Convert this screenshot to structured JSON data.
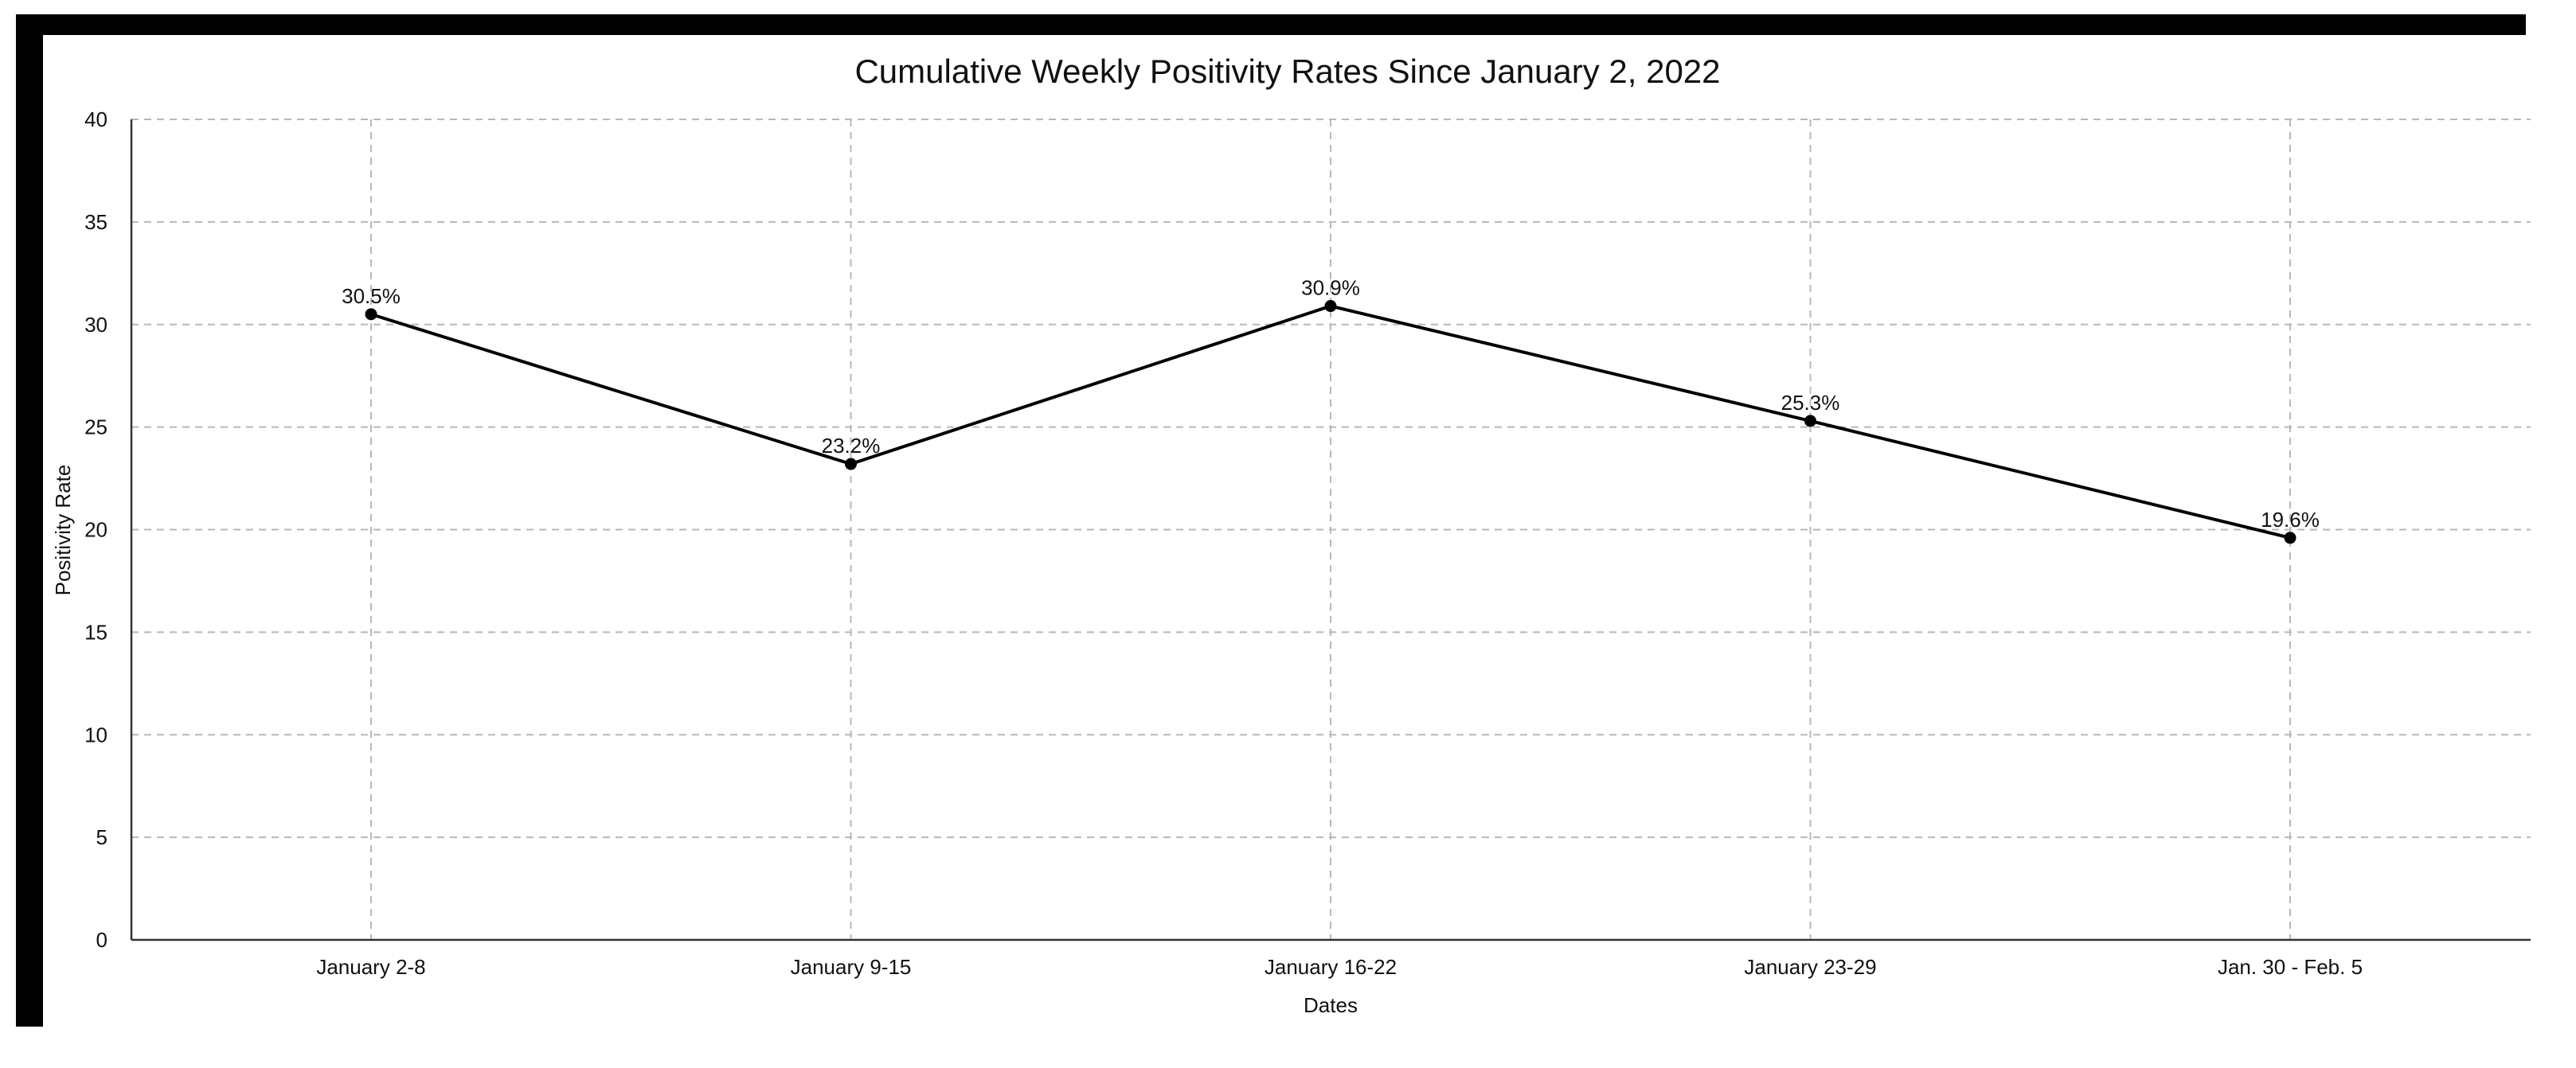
{
  "chart_data": {
    "type": "line",
    "title": "Cumulative Weekly Positivity Rates Since January 2, 2022",
    "xlabel": "Dates",
    "ylabel": "Positivity Rate",
    "categories": [
      "January 2-8",
      "January 9-15",
      "January 16-22",
      "January 23-29",
      "Jan. 30 - Feb. 5"
    ],
    "series": [
      {
        "values": [
          30.5,
          23.2,
          30.9,
          25.3,
          19.6
        ],
        "data_labels": [
          "30.5%",
          "23.2%",
          "30.9%",
          "25.3%",
          "19.6%"
        ],
        "color": "#000000"
      }
    ],
    "ylim": [
      0,
      40
    ],
    "yticks": [
      0,
      5,
      10,
      15,
      20,
      25,
      30,
      35,
      40
    ],
    "grid": true,
    "grid_style": "dashed",
    "legend": "none"
  },
  "colors": {
    "frame": "#000000",
    "background": "#ffffff",
    "grid": "#b8b8b8",
    "line": "#000000"
  }
}
